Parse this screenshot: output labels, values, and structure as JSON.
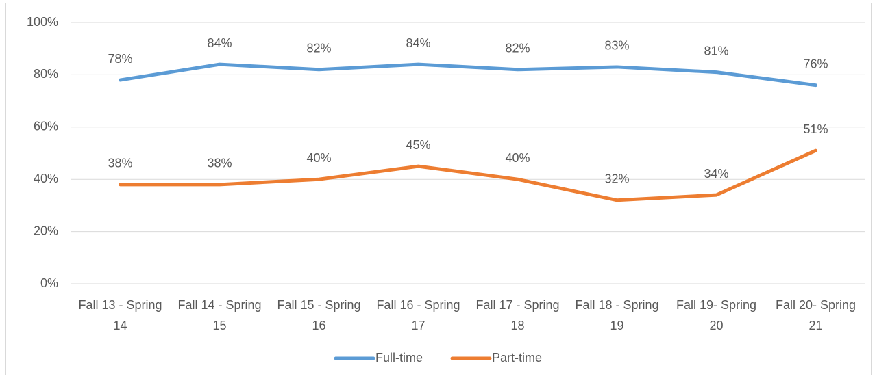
{
  "chart_data": {
    "type": "line",
    "categories": [
      "Fall 13 - Spring 14",
      "Fall 14 - Spring 15",
      "Fall 15 - Spring 16",
      "Fall 16 - Spring 17",
      "Fall 17 - Spring 18",
      "Fall 18 - Spring 19",
      "Fall 19- Spring 20",
      "Fall 20- Spring 21"
    ],
    "series": [
      {
        "name": "Full-time",
        "color": "#5b9bd5",
        "values": [
          78,
          84,
          82,
          84,
          82,
          83,
          81,
          76
        ],
        "value_labels": [
          "78%",
          "84%",
          "82%",
          "84%",
          "82%",
          "83%",
          "81%",
          "76%"
        ]
      },
      {
        "name": "Part-time",
        "color": "#ed7d31",
        "values": [
          38,
          38,
          40,
          45,
          40,
          32,
          34,
          51
        ],
        "value_labels": [
          "38%",
          "38%",
          "40%",
          "45%",
          "40%",
          "32%",
          "34%",
          "51%"
        ]
      }
    ],
    "ylim": [
      0,
      100
    ],
    "yticks": [
      {
        "value": 0,
        "label": "0%"
      },
      {
        "value": 20,
        "label": "20%"
      },
      {
        "value": 40,
        "label": "40%"
      },
      {
        "value": 60,
        "label": "60%"
      },
      {
        "value": 80,
        "label": "80%"
      },
      {
        "value": 100,
        "label": "100%"
      }
    ],
    "grid": true,
    "legend": "bottom"
  }
}
